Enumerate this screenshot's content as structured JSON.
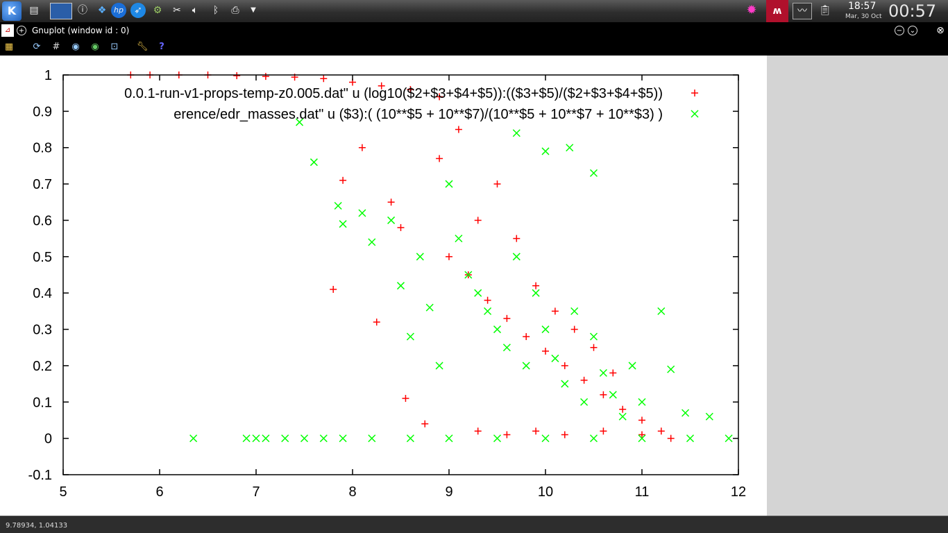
{
  "taskbar": {
    "icons": [
      "kde-menu-icon",
      "show-desktop-icon",
      "window-switcher-icon",
      "info-icon",
      "dropbox-icon",
      "hp-icon",
      "steam-icon",
      "gear-icon",
      "scissors-icon",
      "volume-icon",
      "bluetooth-icon",
      "printer-icon",
      "arrow-down-icon"
    ],
    "tray_icons": [
      "network-icon",
      "mendeley-icon",
      "monitor-icon",
      "clipboard-icon"
    ],
    "clock_time": "18:57",
    "clock_date": "Mar, 30 Oct",
    "clock_big": "00:57"
  },
  "window": {
    "title": "Gnuplot (window id : 0)"
  },
  "toolbar": {
    "icons": [
      "copy-clipboard-icon",
      "replot-icon",
      "grid-icon",
      "zoom-prev-icon",
      "zoom-next-icon",
      "autoscale-icon",
      "options-icon",
      "help-icon"
    ]
  },
  "status": {
    "coords": "9.78934, 1.04133"
  },
  "chart_data": {
    "type": "scatter",
    "xlim": [
      5,
      12
    ],
    "ylim": [
      -0.1,
      1
    ],
    "xticks": [
      "5",
      "6",
      "7",
      "8",
      "9",
      "10",
      "11",
      "12"
    ],
    "yticks": [
      "-0.1",
      "0",
      "0.1",
      "0.2",
      "0.3",
      "0.4",
      "0.5",
      "0.6",
      "0.7",
      "0.8",
      "0.9",
      "1"
    ],
    "grid": false,
    "legend_position": "top-right",
    "series": [
      {
        "name": "0.0.1-run-v1-props-temp-z0.005.dat\" u (log10($2+$3+$4+$5)):(($3+$5)/($2+$3+$4+$5))",
        "color": "#ff0000",
        "marker": "plus",
        "points": [
          [
            5.7,
            1.0
          ],
          [
            5.9,
            1.0
          ],
          [
            6.2,
            1.0
          ],
          [
            6.5,
            1.0
          ],
          [
            6.8,
            0.998
          ],
          [
            7.1,
            0.996
          ],
          [
            7.4,
            0.994
          ],
          [
            7.7,
            0.99
          ],
          [
            8.0,
            0.98
          ],
          [
            8.3,
            0.97
          ],
          [
            8.6,
            0.96
          ],
          [
            8.9,
            0.94
          ],
          [
            7.8,
            0.41
          ],
          [
            8.25,
            0.32
          ],
          [
            8.5,
            0.58
          ],
          [
            8.4,
            0.65
          ],
          [
            7.9,
            0.71
          ],
          [
            8.1,
            0.8
          ],
          [
            8.55,
            0.11
          ],
          [
            8.75,
            0.04
          ],
          [
            8.9,
            0.77
          ],
          [
            9.1,
            0.85
          ],
          [
            9.3,
            0.6
          ],
          [
            9.0,
            0.5
          ],
          [
            9.2,
            0.45
          ],
          [
            9.4,
            0.38
          ],
          [
            9.6,
            0.33
          ],
          [
            9.8,
            0.28
          ],
          [
            10.0,
            0.24
          ],
          [
            10.2,
            0.2
          ],
          [
            10.4,
            0.16
          ],
          [
            10.6,
            0.12
          ],
          [
            10.8,
            0.08
          ],
          [
            11.0,
            0.05
          ],
          [
            11.2,
            0.02
          ],
          [
            9.5,
            0.7
          ],
          [
            9.7,
            0.55
          ],
          [
            9.9,
            0.42
          ],
          [
            10.1,
            0.35
          ],
          [
            10.3,
            0.3
          ],
          [
            10.5,
            0.25
          ],
          [
            10.7,
            0.18
          ],
          [
            9.3,
            0.02
          ],
          [
            9.6,
            0.01
          ],
          [
            9.9,
            0.02
          ],
          [
            10.2,
            0.01
          ],
          [
            10.6,
            0.02
          ],
          [
            11.0,
            0.01
          ],
          [
            11.3,
            0.0
          ]
        ]
      },
      {
        "name": "erence/edr_masses.dat\" u ($3):( (10**$5 + 10**$7)/(10**$5 + 10**$7 + 10**$3) )",
        "color": "#00ff00",
        "marker": "cross",
        "points": [
          [
            6.35,
            0.0
          ],
          [
            6.9,
            0.0
          ],
          [
            7.0,
            0.0
          ],
          [
            7.1,
            0.0
          ],
          [
            7.3,
            0.0
          ],
          [
            7.5,
            0.0
          ],
          [
            7.7,
            0.0
          ],
          [
            7.9,
            0.0
          ],
          [
            8.2,
            0.0
          ],
          [
            8.6,
            0.0
          ],
          [
            9.0,
            0.0
          ],
          [
            9.5,
            0.0
          ],
          [
            10.0,
            0.0
          ],
          [
            10.5,
            0.0
          ],
          [
            11.0,
            0.0
          ],
          [
            11.5,
            0.0
          ],
          [
            11.9,
            0.0
          ],
          [
            7.45,
            0.87
          ],
          [
            7.6,
            0.76
          ],
          [
            7.85,
            0.64
          ],
          [
            7.9,
            0.59
          ],
          [
            8.1,
            0.62
          ],
          [
            8.2,
            0.54
          ],
          [
            8.4,
            0.6
          ],
          [
            8.5,
            0.42
          ],
          [
            8.6,
            0.28
          ],
          [
            8.7,
            0.5
          ],
          [
            8.8,
            0.36
          ],
          [
            8.9,
            0.2
          ],
          [
            9.0,
            0.7
          ],
          [
            9.1,
            0.55
          ],
          [
            9.2,
            0.45
          ],
          [
            9.3,
            0.4
          ],
          [
            9.4,
            0.35
          ],
          [
            9.5,
            0.3
          ],
          [
            9.6,
            0.25
          ],
          [
            9.7,
            0.5
          ],
          [
            9.8,
            0.2
          ],
          [
            9.9,
            0.4
          ],
          [
            10.0,
            0.3
          ],
          [
            10.1,
            0.22
          ],
          [
            10.2,
            0.15
          ],
          [
            10.3,
            0.35
          ],
          [
            10.4,
            0.1
          ],
          [
            10.5,
            0.28
          ],
          [
            10.6,
            0.18
          ],
          [
            10.7,
            0.12
          ],
          [
            10.8,
            0.06
          ],
          [
            10.9,
            0.2
          ],
          [
            11.0,
            0.1
          ],
          [
            11.2,
            0.35
          ],
          [
            11.3,
            0.19
          ],
          [
            11.45,
            0.07
          ],
          [
            11.7,
            0.06
          ],
          [
            9.7,
            0.84
          ],
          [
            10.25,
            0.8
          ],
          [
            10.0,
            0.79
          ],
          [
            10.5,
            0.73
          ]
        ]
      }
    ]
  }
}
